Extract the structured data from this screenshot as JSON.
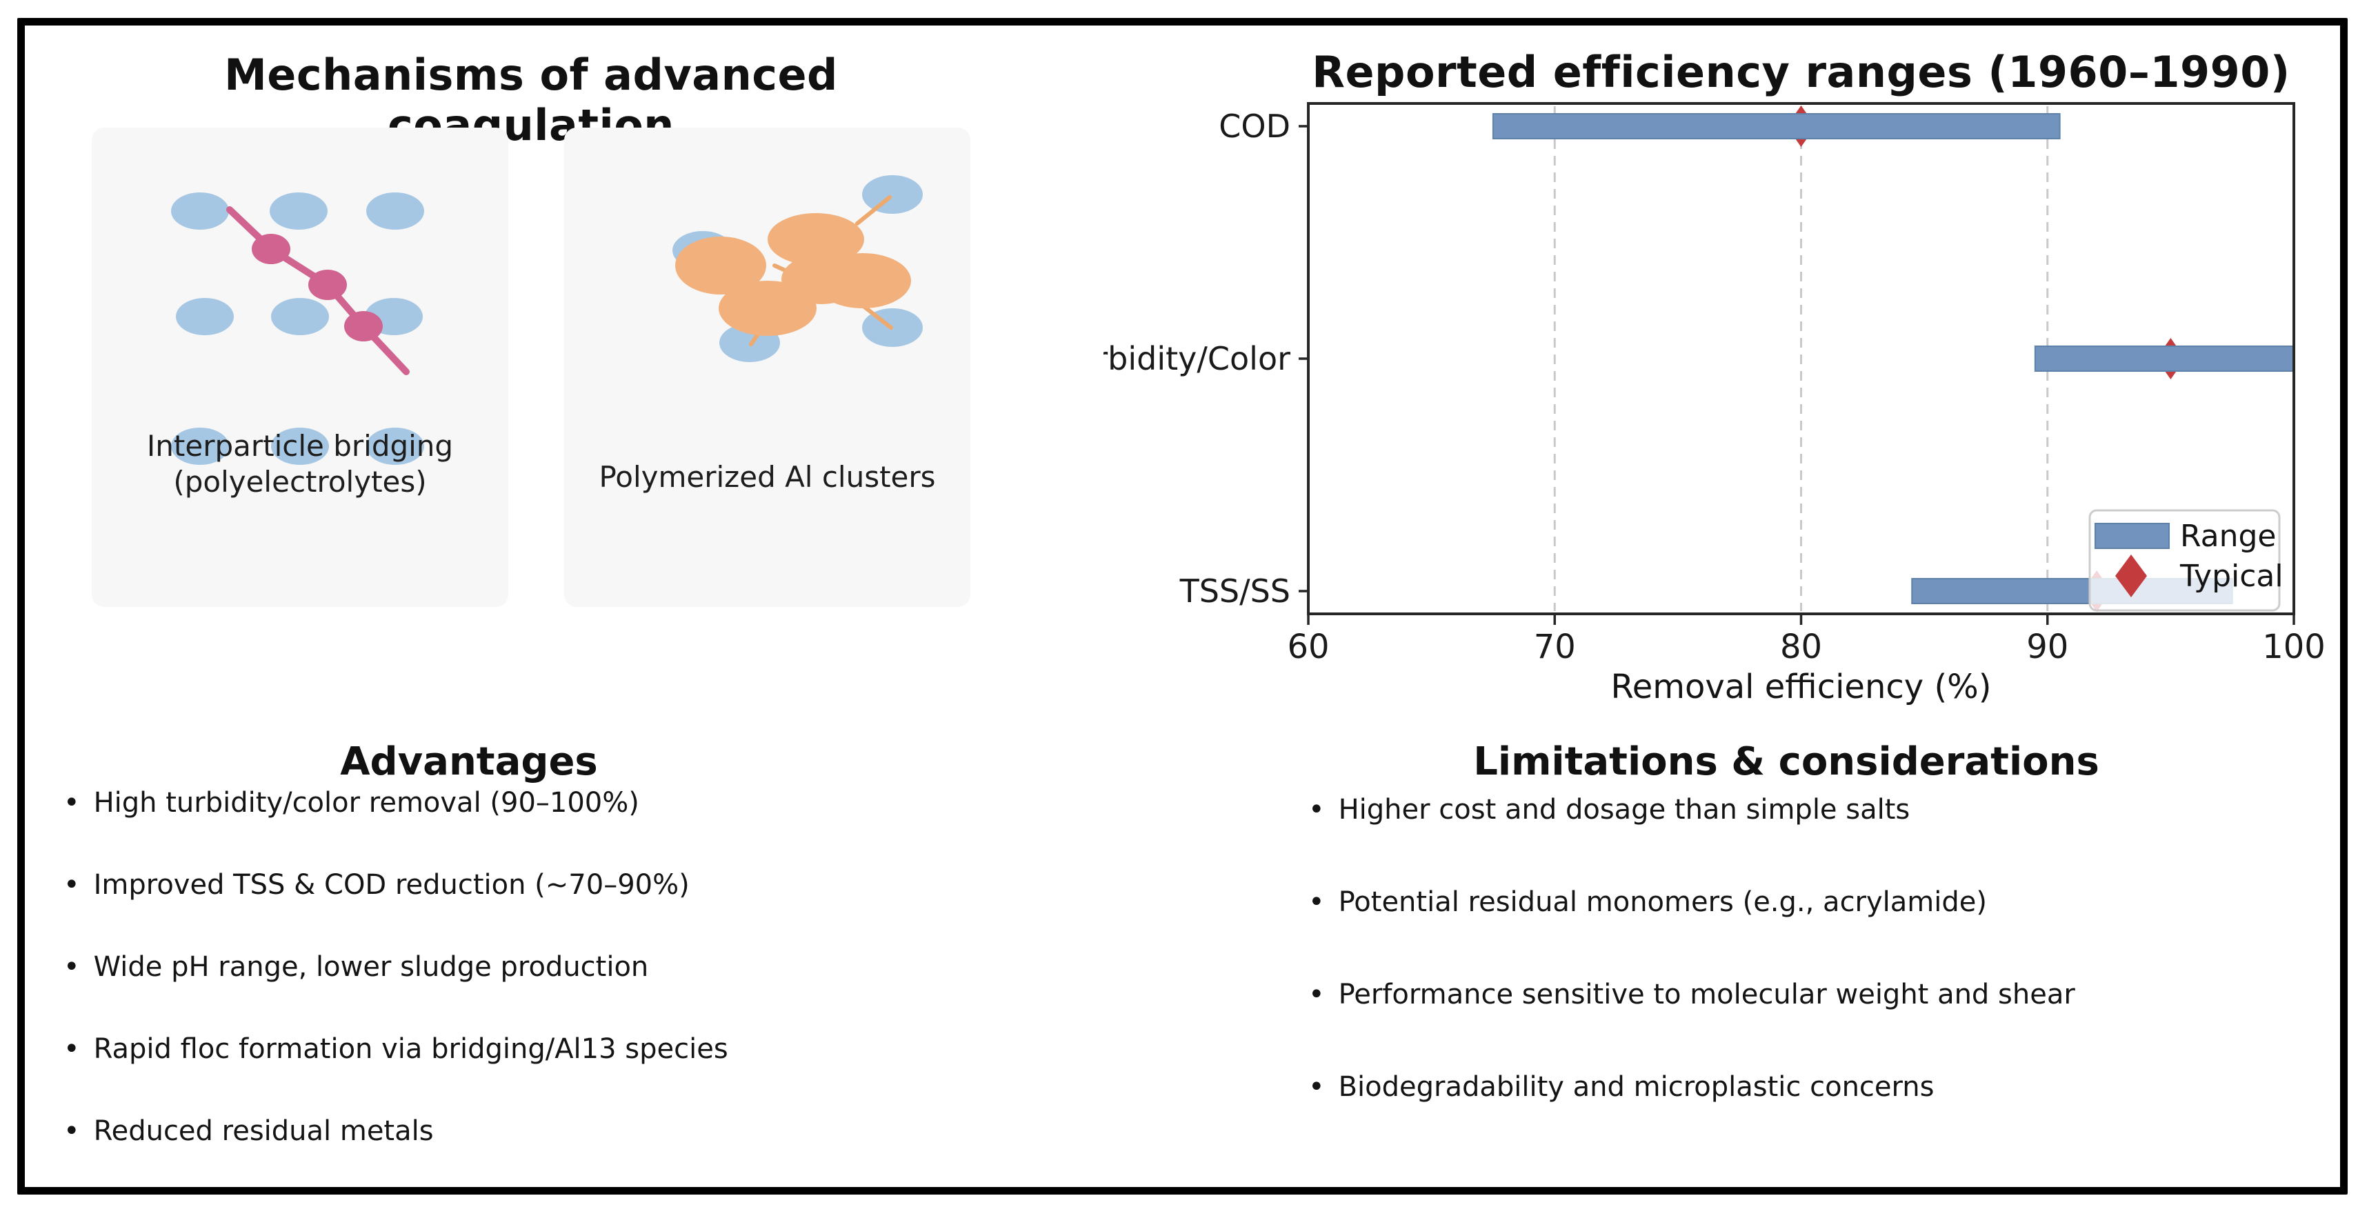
{
  "left": {
    "title": "Mechanisms of advanced coagulation",
    "panels": [
      {
        "caption_line1": "Interparticle bridging",
        "caption_line2": "(polyelectrolytes)"
      },
      {
        "caption_line1": "Polymerized Al clusters",
        "caption_line2": ""
      }
    ]
  },
  "advantages": {
    "title": "Advantages",
    "items": [
      "High turbidity/color removal (90–100%)",
      "Improved TSS & COD reduction (~70–90%)",
      "Wide pH range, lower sludge production",
      "Rapid floc formation via bridging/Al13 species",
      "Reduced residual metals"
    ]
  },
  "limitations": {
    "title": "Limitations & considerations",
    "items": [
      "Higher cost and dosage than simple salts",
      "Potential residual monomers (e.g., acrylamide)",
      "Performance sensitive to molecular weight and shear",
      "Biodegradability and microplastic concerns"
    ]
  },
  "glyphs": {
    "bullet": "•"
  },
  "chart_data": {
    "type": "bar",
    "orientation": "horizontal-range",
    "title": "Reported efficiency ranges (1960–1990)",
    "xlabel": "Removal efficiency (%)",
    "categories": [
      "COD",
      "Turbidity/Color",
      "TSS/SS"
    ],
    "series": [
      {
        "name": "Range",
        "ranges": [
          [
            67.5,
            90.5
          ],
          [
            89.5,
            100
          ],
          [
            84.5,
            97.5
          ]
        ]
      },
      {
        "name": "Typical",
        "values": [
          80,
          95,
          92
        ]
      }
    ],
    "xlim": [
      60,
      100
    ],
    "xticks": [
      60,
      70,
      80,
      90,
      100
    ],
    "grid": "vertical dashed gridlines at interior ticks",
    "legend": {
      "position": "lower right",
      "entries": [
        "Range",
        "Typical"
      ]
    },
    "colors": {
      "range_bar": "#7193bd",
      "range_bar_edge": "#5d81a9",
      "typical_marker": "#c33b3d",
      "gridline": "#c9c9c9",
      "spine": "#262626"
    }
  },
  "mechanism_colors": {
    "particle_blue": "#a6c7e4",
    "polymer_pink": "#d06390",
    "cluster_orange": "#f2b17c",
    "connector_orange": "#eda96e",
    "panel_bg": "#f7f7f7"
  }
}
